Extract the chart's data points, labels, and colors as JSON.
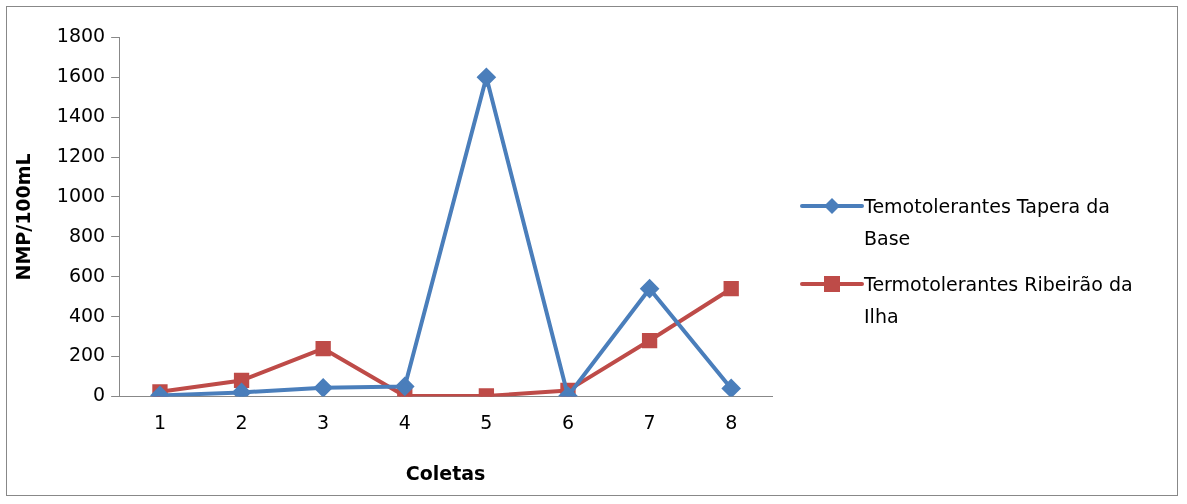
{
  "chart_data": {
    "type": "line",
    "xlabel": "Coletas",
    "ylabel": "NMP/100mL",
    "categories": [
      "1",
      "2",
      "3",
      "4",
      "5",
      "6",
      "7",
      "8"
    ],
    "series": [
      {
        "name": "Temotolerantes Tapera da Base",
        "color": "#4a7ebb",
        "marker": "diamond",
        "values": [
          5,
          20,
          43,
          50,
          1600,
          2,
          540,
          40
        ]
      },
      {
        "name": "Termotolerantes Ribeirão da Ilha",
        "color": "#be4b48",
        "marker": "square",
        "values": [
          23,
          80,
          240,
          2,
          2,
          30,
          280,
          540
        ]
      }
    ],
    "ylim": [
      0,
      1800
    ],
    "yticks": [
      0,
      200,
      400,
      600,
      800,
      1000,
      1200,
      1400,
      1600,
      1800
    ],
    "grid": false,
    "legend": "right"
  }
}
